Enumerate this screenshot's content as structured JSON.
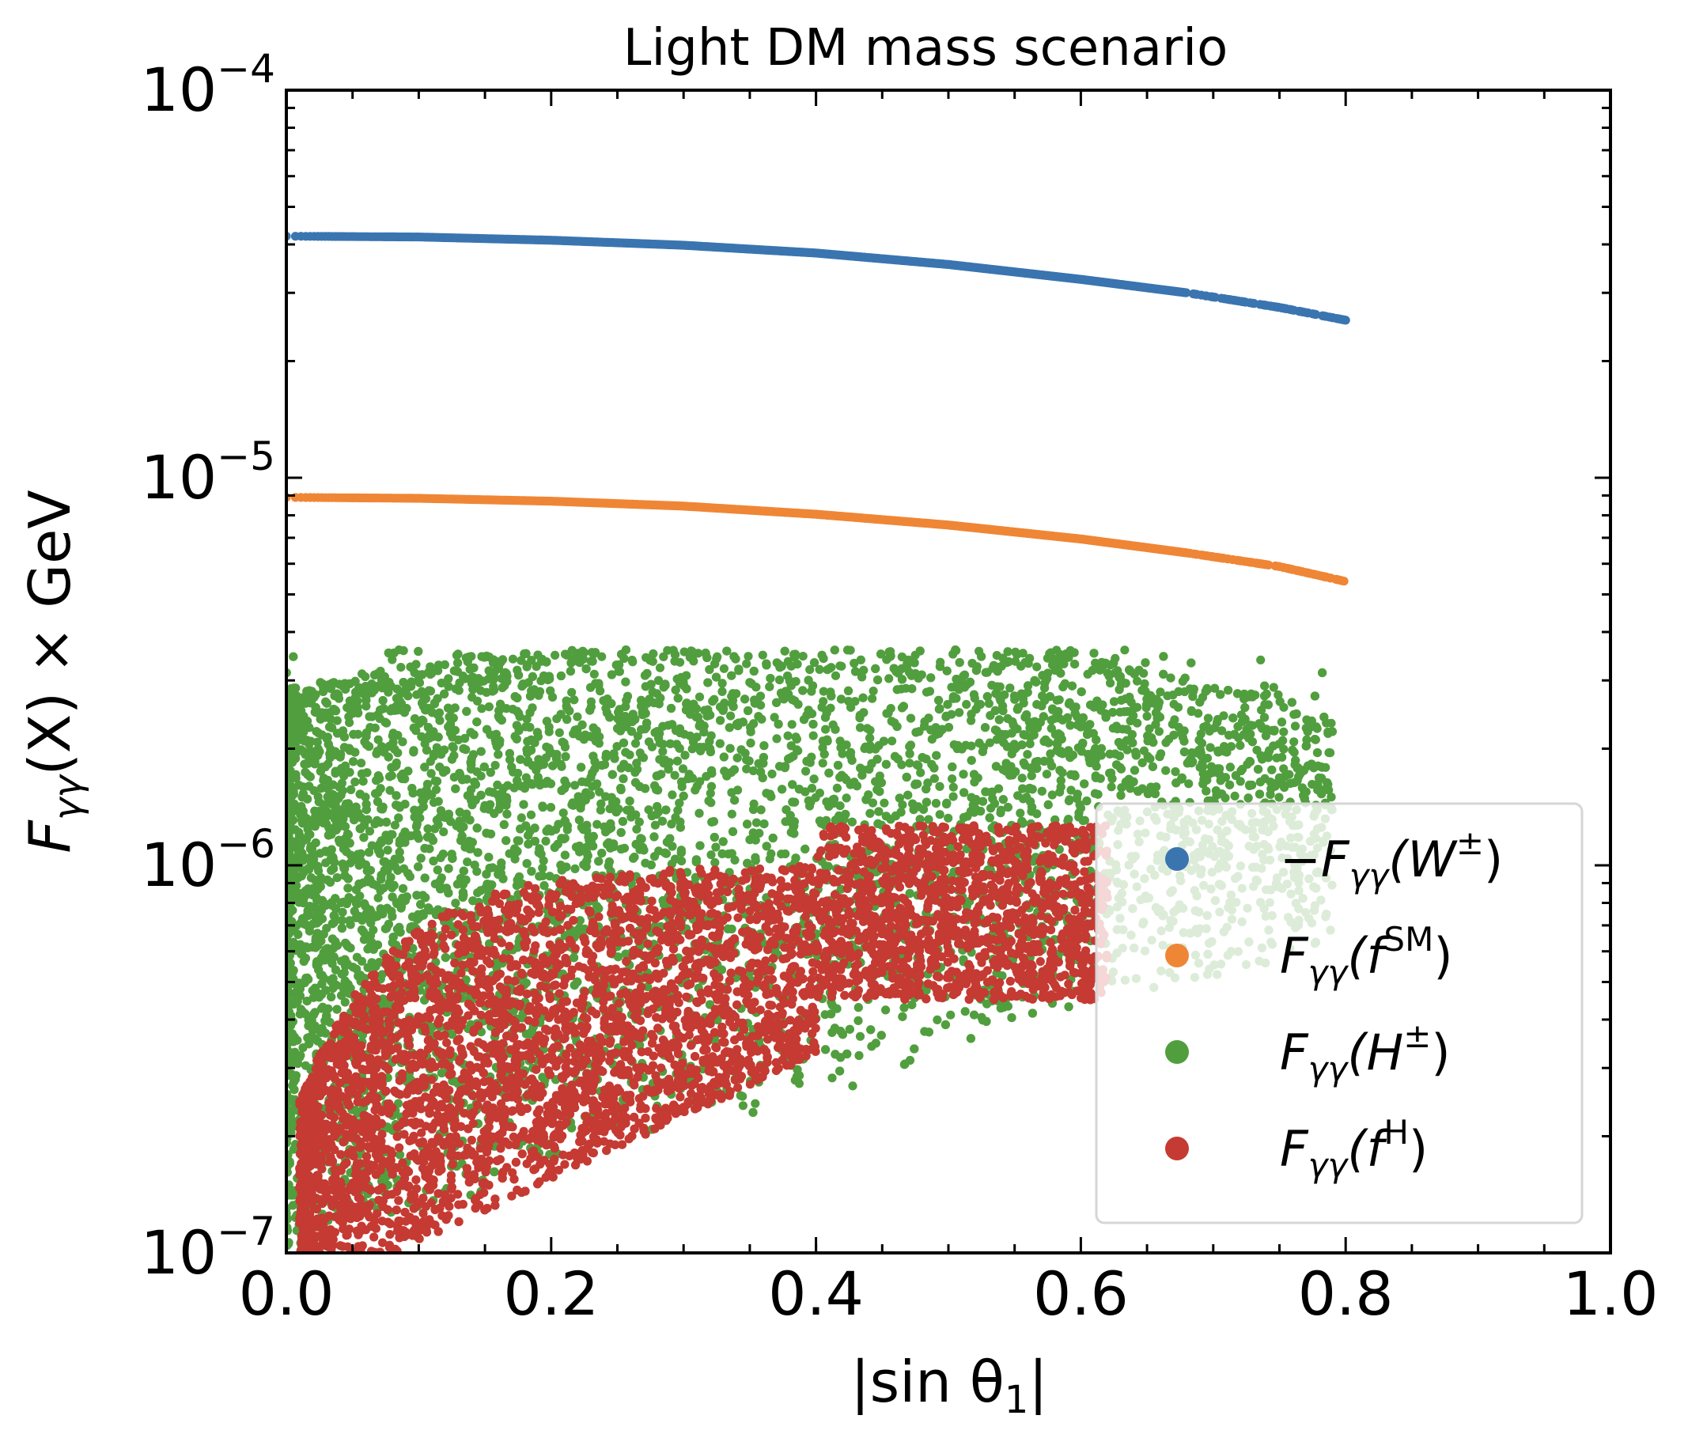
{
  "chart_data": {
    "type": "scatter",
    "title": "Light DM mass scenario",
    "xlabel": "|sin θ",
    "xlabel_sub": "1",
    "xlabel_close": "|",
    "ylabel": "F",
    "ylabel_sub": "γγ",
    "ylabel_rest": "(X) × GeV",
    "xlim": [
      0.0,
      1.0
    ],
    "ylim": [
      1e-07,
      0.0001
    ],
    "yscale": "log",
    "x_ticks": [
      0.0,
      0.2,
      0.4,
      0.6,
      0.8,
      1.0
    ],
    "x_tick_labels": [
      "0.0",
      "0.2",
      "0.4",
      "0.6",
      "0.8",
      "1.0"
    ],
    "y_ticks": [
      {
        "value": 0.0001,
        "base": "10",
        "exp": "−4"
      },
      {
        "value": 1e-05,
        "base": "10",
        "exp": "−5"
      },
      {
        "value": 1e-06,
        "base": "10",
        "exp": "−6"
      },
      {
        "value": 1e-07,
        "base": "10",
        "exp": "−7"
      }
    ],
    "legend_position": "lower-right",
    "series": [
      {
        "name": "−F_γγ(W±)",
        "legend": {
          "pre": "−F",
          "sub": "γγ",
          "mid": "(W",
          "sup": "±",
          "post": ")"
        },
        "color": "#3a75b0",
        "kind": "curve",
        "x": [
          0.0,
          0.1,
          0.2,
          0.3,
          0.4,
          0.5,
          0.6,
          0.68,
          0.75,
          0.8
        ],
        "y": [
          4.2e-05,
          4.18e-05,
          4.1e-05,
          3.98e-05,
          3.8e-05,
          3.55e-05,
          3.25e-05,
          3e-05,
          2.75e-05,
          2.55e-05
        ]
      },
      {
        "name": "F_γγ(f^SM)",
        "legend": {
          "pre": "F",
          "sub": "γγ",
          "mid": "(f",
          "sup": "SM",
          "post": ")"
        },
        "color": "#ef8636",
        "kind": "curve",
        "x": [
          0.0,
          0.1,
          0.2,
          0.3,
          0.4,
          0.5,
          0.6,
          0.68,
          0.75,
          0.8
        ],
        "y": [
          8.9e-06,
          8.85e-06,
          8.7e-06,
          8.45e-06,
          8.05e-06,
          7.55e-06,
          6.95e-06,
          6.4e-06,
          5.9e-06,
          5.4e-06
        ]
      },
      {
        "name": "F_γγ(H±)",
        "legend": {
          "pre": "F",
          "sub": "γγ",
          "mid": "(H",
          "sup": "±",
          "post": ")"
        },
        "color": "#519e3e",
        "kind": "scatter-cloud",
        "x_range": [
          0.0,
          0.79
        ],
        "y_range": [
          1e-07,
          3.5e-06
        ],
        "count": 9000
      },
      {
        "name": "F_γγ(f^H)",
        "legend": {
          "pre": "F",
          "sub": "γγ",
          "mid": "(f",
          "sup": "H",
          "post": ")"
        },
        "color": "#c53a32",
        "kind": "scatter-cloud",
        "x_range": [
          0.01,
          0.62
        ],
        "y_range": [
          1e-07,
          1.3e-06
        ],
        "count": 7000
      }
    ]
  }
}
